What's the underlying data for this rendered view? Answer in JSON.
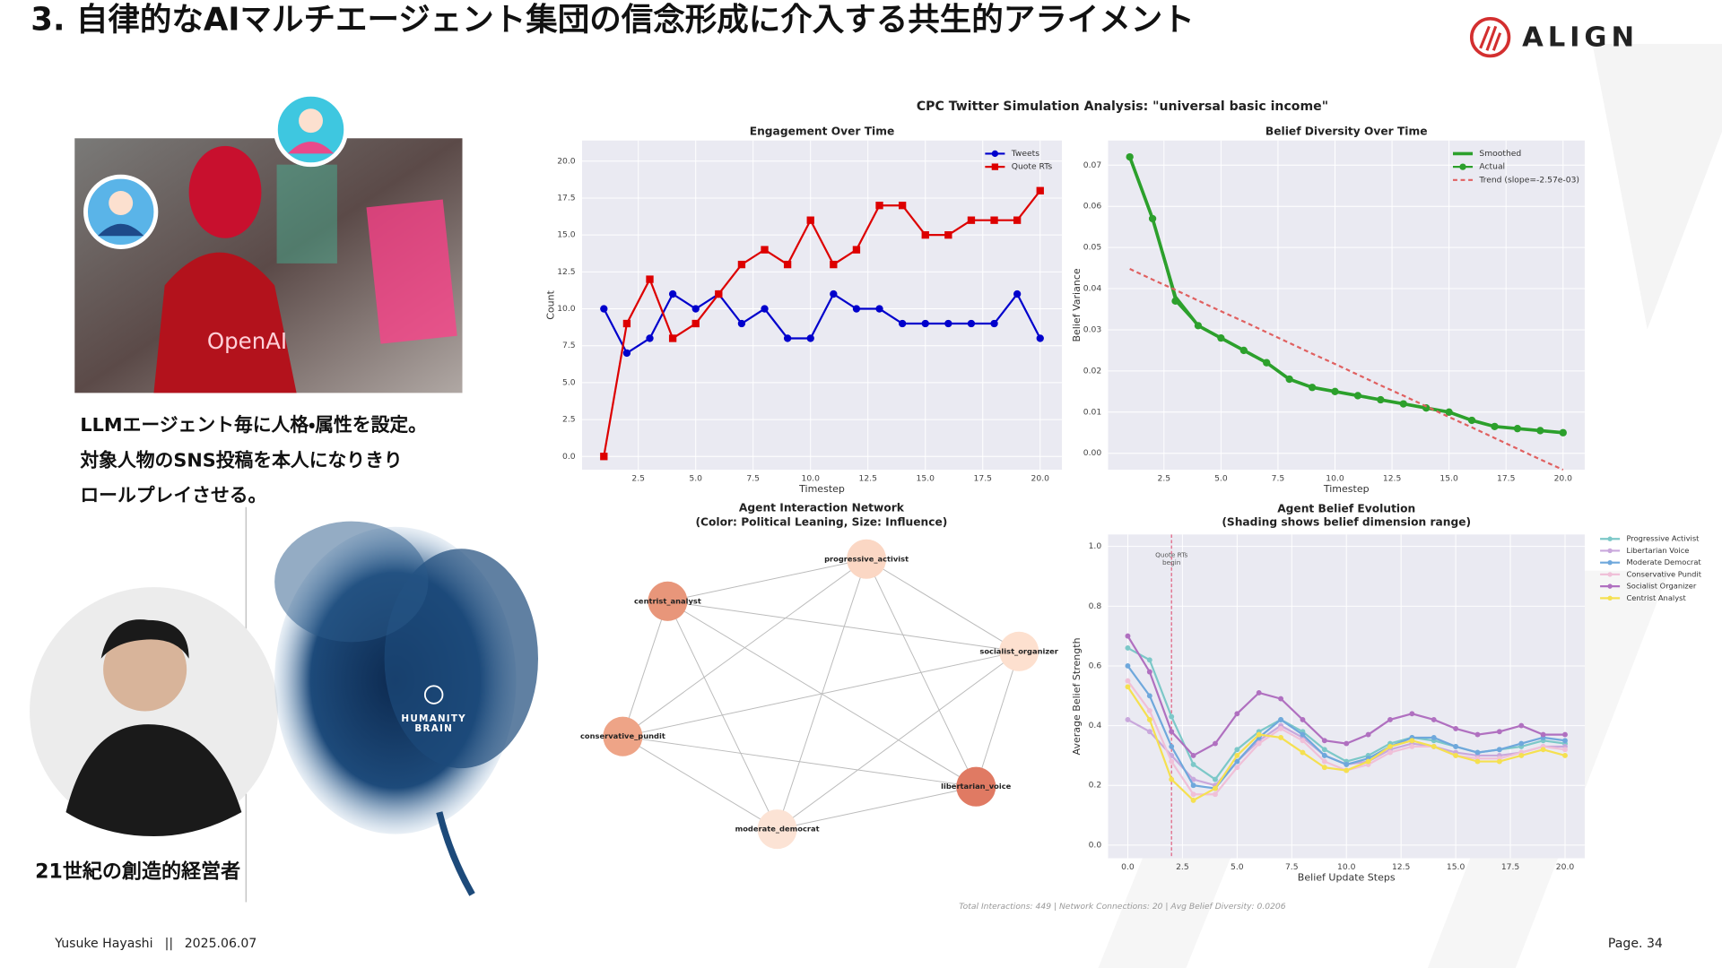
{
  "header": {
    "title": "3. 自律的なAIマルチエージェント集団の信念形成に介入する共生的アライメント",
    "logo": "ALIGN"
  },
  "left": {
    "robot_label": "OpenAI",
    "caption": [
      "LLMエージェント毎に人格・属性を設定。",
      "対象人物のSNS投稿を本人になりきり",
      "ロールプレイさせる。"
    ],
    "person_caption": "21世紀の創造的経営者",
    "brain_label": [
      "HUMANITY",
      "BRAIN"
    ]
  },
  "figure": {
    "title": "CPC Twitter Simulation Analysis: \"universal basic income\"",
    "note": "Total Interactions: 449 | Network Connections: 20 | Avg Belief Diversity: 0.0206"
  },
  "chart_data": [
    {
      "type": "line",
      "title": "Engagement Over Time",
      "x_label": "Timestep",
      "y_label": "Count",
      "x": [
        1,
        2,
        3,
        4,
        5,
        6,
        7,
        8,
        9,
        10,
        11,
        12,
        13,
        14,
        15,
        16,
        17,
        18,
        19,
        20
      ],
      "series": [
        {
          "name": "Tweets",
          "color": "#0000cc",
          "marker": "circle",
          "values": [
            10,
            7,
            8,
            11,
            10,
            11,
            9,
            10,
            8,
            8,
            11,
            10,
            10,
            9,
            9,
            9,
            9,
            9,
            11,
            8
          ]
        },
        {
          "name": "Quote RTs",
          "color": "#dd0000",
          "marker": "square",
          "values": [
            0,
            9,
            12,
            8,
            9,
            11,
            13,
            14,
            13,
            16,
            13,
            14,
            17,
            17,
            15,
            15,
            16,
            16,
            16,
            18
          ]
        }
      ],
      "xlim": [
        0.05,
        20.95
      ],
      "xticks": [
        2.5,
        {
          "value": 5,
          "label": "5.0"
        },
        7.5,
        {
          "value": 10,
          "label": "10.0"
        },
        12.5,
        {
          "value": 15,
          "label": "15.0"
        },
        17.5,
        {
          "value": 20,
          "label": "20.0"
        }
      ],
      "ylim": [
        -0.9,
        21.4
      ],
      "yticks": [
        {
          "value": 0,
          "label": "0.0"
        },
        2.5,
        {
          "value": 5,
          "label": "5.0"
        },
        7.5,
        {
          "value": 10,
          "label": "10.0"
        },
        12.5,
        {
          "value": 15,
          "label": "15.0"
        },
        17.5,
        {
          "value": 20,
          "label": "20.0"
        }
      ],
      "grid": true,
      "legend": "upper right"
    },
    {
      "type": "line",
      "title": "Belief Diversity Over Time",
      "x_label": "Timestep",
      "y_label": "Belief Variance",
      "x": [
        1,
        2,
        3,
        4,
        5,
        6,
        7,
        8,
        9,
        10,
        11,
        12,
        13,
        14,
        15,
        16,
        17,
        18,
        19,
        20
      ],
      "series": [
        {
          "name": "Smoothed",
          "color": "#2ca02c",
          "marker": null,
          "width": 3,
          "values": [
            0.072,
            0.057,
            0.038,
            0.031,
            0.028,
            0.025,
            0.022,
            0.018,
            0.016,
            0.015,
            0.014,
            0.013,
            0.012,
            0.011,
            0.01,
            0.008,
            0.0065,
            0.006,
            0.0055,
            0.005
          ]
        },
        {
          "name": "Actual",
          "color": "#2ca02c",
          "marker": "circle",
          "values": [
            0.072,
            0.057,
            0.037,
            0.031,
            0.028,
            0.025,
            0.022,
            0.018,
            0.016,
            0.015,
            0.014,
            0.013,
            0.012,
            0.011,
            0.01,
            0.008,
            0.0065,
            0.006,
            0.0055,
            0.005
          ]
        },
        {
          "name": "Trend (slope=-2.57e-03)",
          "color": "#e06060",
          "marker": null,
          "dash": true,
          "values": [
            0.0448,
            0.0422,
            0.0397,
            0.0371,
            0.0345,
            0.032,
            0.0294,
            0.0268,
            0.0242,
            0.0217,
            0.0191,
            0.0165,
            0.014,
            0.0114,
            0.0088,
            0.0063,
            0.0037,
            0.0011,
            -0.0015,
            -0.004
          ]
        }
      ],
      "xlim": [
        0.05,
        20.95
      ],
      "xticks": [
        2.5,
        {
          "value": 5,
          "label": "5.0"
        },
        7.5,
        {
          "value": 10,
          "label": "10.0"
        },
        12.5,
        {
          "value": 15,
          "label": "15.0"
        },
        17.5,
        {
          "value": 20,
          "label": "20.0"
        }
      ],
      "ylim": [
        -0.004,
        0.076
      ],
      "yticks": [
        {
          "value": 0,
          "label": "0.00"
        },
        0.01,
        0.02,
        0.03,
        0.04,
        0.05,
        0.06,
        0.07
      ],
      "grid": true,
      "legend": "upper right"
    },
    {
      "type": "network",
      "title": "Agent Interaction Network",
      "subtitle": "(Color: Political Leaning, Size: Influence)",
      "nodes": [
        {
          "name": "centrist_analyst",
          "color": "#e8967a"
        },
        {
          "name": "progressive_activist",
          "color": "#fbd7c4"
        },
        {
          "name": "socialist_organizer",
          "color": "#fde0cf"
        },
        {
          "name": "conservative_pundit",
          "color": "#eea487"
        },
        {
          "name": "libertarian_voice",
          "color": "#e07a63"
        },
        {
          "name": "moderate_democrat",
          "color": "#fce3d5"
        }
      ]
    },
    {
      "type": "line",
      "title": "Agent Belief Evolution",
      "subtitle": "(Shading shows belief dimension range)",
      "x_label": "Belief Update Steps",
      "y_label": "Average Belief Strength",
      "x": [
        0,
        1,
        2,
        3,
        4,
        5,
        6,
        7,
        8,
        9,
        10,
        11,
        12,
        13,
        14,
        15,
        16,
        17,
        18,
        19,
        20
      ],
      "series": [
        {
          "name": "Progressive Activist",
          "color": "#7cc8c8",
          "marker": "circle",
          "values": [
            0.66,
            0.62,
            0.43,
            0.27,
            0.22,
            0.32,
            0.38,
            0.42,
            0.38,
            0.32,
            0.28,
            0.3,
            0.34,
            0.36,
            0.35,
            0.33,
            0.31,
            0.32,
            0.33,
            0.35,
            0.34
          ]
        },
        {
          "name": "Libertarian Voice",
          "color": "#c9a8dc",
          "marker": "circle",
          "values": [
            0.42,
            0.38,
            0.3,
            0.22,
            0.2,
            0.28,
            0.35,
            0.4,
            0.36,
            0.3,
            0.27,
            0.28,
            0.32,
            0.34,
            0.33,
            0.31,
            0.3,
            0.3,
            0.31,
            0.33,
            0.33
          ]
        },
        {
          "name": "Moderate Democrat",
          "color": "#6fa8dc",
          "marker": "circle",
          "values": [
            0.6,
            0.5,
            0.33,
            0.2,
            0.19,
            0.28,
            0.36,
            0.42,
            0.37,
            0.3,
            0.27,
            0.29,
            0.33,
            0.36,
            0.36,
            0.33,
            0.31,
            0.32,
            0.34,
            0.36,
            0.35
          ]
        },
        {
          "name": "Conservative Pundit",
          "color": "#f0c0d8",
          "marker": "circle",
          "values": [
            0.55,
            0.45,
            0.28,
            0.17,
            0.17,
            0.26,
            0.34,
            0.39,
            0.35,
            0.28,
            0.25,
            0.27,
            0.31,
            0.33,
            0.33,
            0.3,
            0.29,
            0.29,
            0.31,
            0.33,
            0.32
          ]
        },
        {
          "name": "Socialist Organizer",
          "color": "#b070c0",
          "marker": "circle",
          "values": [
            0.7,
            0.58,
            0.38,
            0.3,
            0.34,
            0.44,
            0.51,
            0.49,
            0.42,
            0.35,
            0.34,
            0.37,
            0.42,
            0.44,
            0.42,
            0.39,
            0.37,
            0.38,
            0.4,
            0.37,
            0.37
          ]
        },
        {
          "name": "Centrist Analyst",
          "color": "#f5e050",
          "marker": "circle",
          "values": [
            0.53,
            0.42,
            0.22,
            0.15,
            0.19,
            0.3,
            0.37,
            0.36,
            0.31,
            0.26,
            0.25,
            0.28,
            0.33,
            0.35,
            0.33,
            0.3,
            0.28,
            0.28,
            0.3,
            0.32,
            0.3
          ]
        }
      ],
      "annotations": [
        {
          "x": 2,
          "text": [
            "Quote RTs",
            "begin"
          ]
        }
      ],
      "xlim": [
        -0.9,
        20.9
      ],
      "xticks": [
        {
          "value": 0,
          "label": "0.0"
        },
        2.5,
        {
          "value": 5,
          "label": "5.0"
        },
        7.5,
        {
          "value": 10,
          "label": "10.0"
        },
        12.5,
        {
          "value": 15,
          "label": "15.0"
        },
        17.5,
        {
          "value": 20,
          "label": "20.0"
        }
      ],
      "ylim": [
        -0.044,
        1.04
      ],
      "yticks": [
        {
          "value": 0,
          "label": "0.0"
        },
        0.2,
        0.4,
        0.6,
        0.8,
        {
          "value": 1,
          "label": "1.0"
        }
      ],
      "grid": true,
      "legend": "outside right"
    }
  ],
  "footer": {
    "author": "Yusuke Hayashi",
    "separator": "||",
    "date": "2025.06.07",
    "page": "Page. 34"
  }
}
